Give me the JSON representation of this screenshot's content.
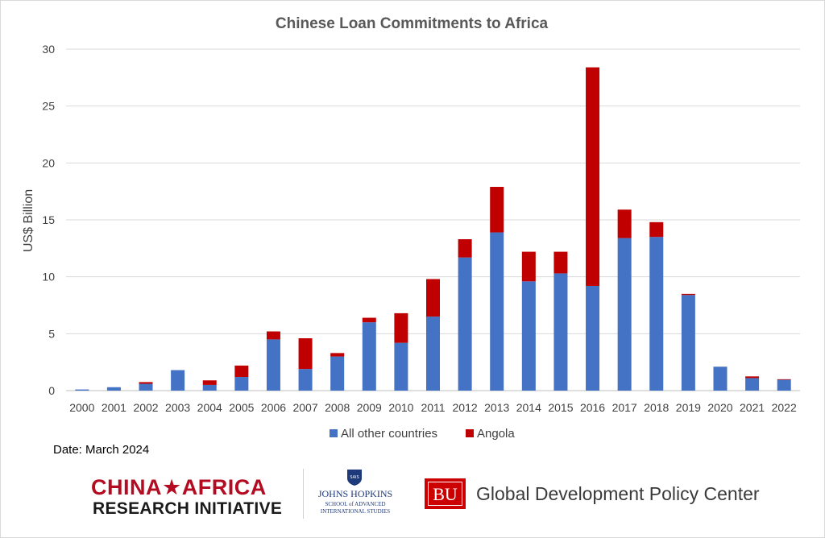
{
  "chart_data": {
    "type": "bar",
    "stacked": true,
    "title": "Chinese Loan Commitments to Africa",
    "xlabel": "",
    "ylabel": "US$ Billion",
    "ylim": [
      0,
      30
    ],
    "yticks": [
      0,
      5,
      10,
      15,
      20,
      25,
      30
    ],
    "grid": true,
    "legend_position": "bottom",
    "categories": [
      "2000",
      "2001",
      "2002",
      "2003",
      "2004",
      "2005",
      "2006",
      "2007",
      "2008",
      "2009",
      "2010",
      "2011",
      "2012",
      "2013",
      "2014",
      "2015",
      "2016",
      "2017",
      "2018",
      "2019",
      "2020",
      "2021",
      "2022"
    ],
    "series": [
      {
        "name": "All other countries",
        "color": "#4472c4",
        "values": [
          0.1,
          0.3,
          0.6,
          1.8,
          0.5,
          1.2,
          4.5,
          1.9,
          3.0,
          6.0,
          4.2,
          6.5,
          11.7,
          13.9,
          9.6,
          10.3,
          9.2,
          13.4,
          13.5,
          8.4,
          2.1,
          1.1,
          0.95
        ]
      },
      {
        "name": "Angola",
        "color": "#c00000",
        "values": [
          0,
          0,
          0.15,
          0,
          0.4,
          1.0,
          0.7,
          2.7,
          0.3,
          0.4,
          2.6,
          3.3,
          1.6,
          4.0,
          2.6,
          1.9,
          19.2,
          2.5,
          1.3,
          0.1,
          0,
          0.15,
          0.05
        ]
      }
    ]
  },
  "footnote": {
    "date": "Date: March 2024"
  },
  "logos": {
    "china_africa_line1": "CHINA★AFRICA",
    "china_africa_line2": "RESEARCH INITIATIVE",
    "jhu_name": "JOHNS HOPKINS",
    "jhu_sub1": "SCHOOL of ADVANCED",
    "jhu_sub2": "INTERNATIONAL STUDIES",
    "jhu_shield_text": "SAIS",
    "bu_mark": "BU",
    "gdp_name": "Global Development Policy Center"
  }
}
